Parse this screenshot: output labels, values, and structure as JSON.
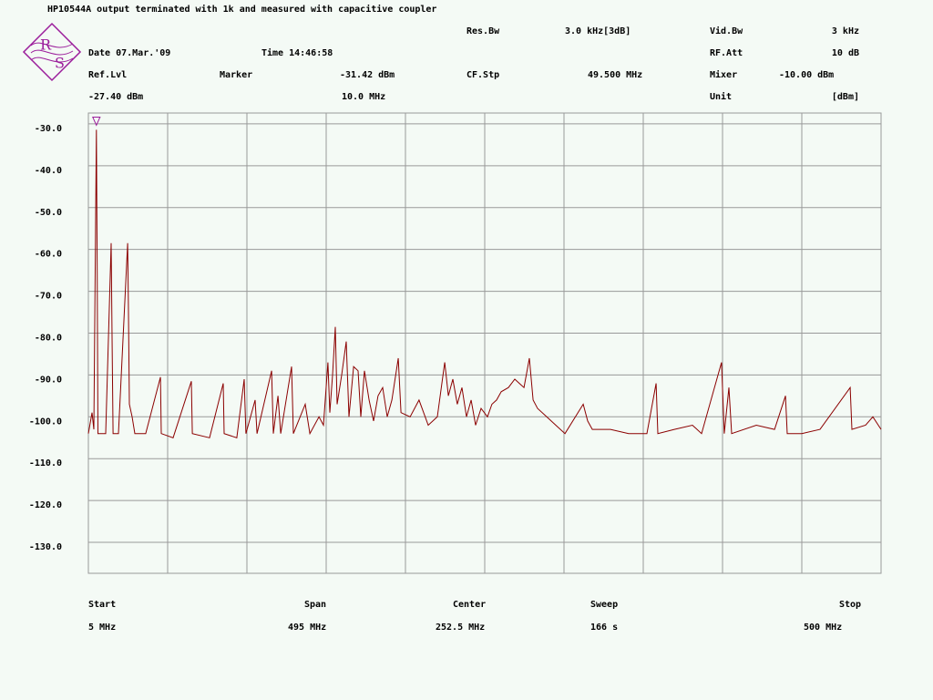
{
  "chart_data": {
    "type": "line",
    "title": "HP10544A output terminated with 1k and measured with capacitive coupler",
    "color": "#8b0000",
    "grid": true,
    "xlim": [
      5,
      500
    ],
    "ylim": [
      -137.4,
      -27.4
    ],
    "yticks": [
      {
        "value": -30,
        "label": "-30.0"
      },
      {
        "value": -40,
        "label": "-40.0"
      },
      {
        "value": -50,
        "label": "-50.0"
      },
      {
        "value": -60,
        "label": "-60.0"
      },
      {
        "value": -70,
        "label": "-70.0"
      },
      {
        "value": -80,
        "label": "-80.0"
      },
      {
        "value": -90,
        "label": "-90.0"
      },
      {
        "value": -100,
        "label": "-100.0"
      },
      {
        "value": -110,
        "label": "-110.0"
      },
      {
        "value": -120,
        "label": "-120.0"
      },
      {
        "value": -130,
        "label": "-130.0"
      }
    ],
    "x": [
      5,
      7.3,
      8.4,
      10,
      10.5,
      11,
      12.4,
      15.8,
      19.2,
      19.8,
      20.4,
      23.8,
      29.5,
      30,
      30.6,
      32.3,
      34,
      40.8,
      50,
      50.5,
      57.9,
      69.3,
      69.9,
      80.7,
      89.2,
      89.8,
      97.7,
      102.3,
      103.4,
      109.1,
      110.3,
      119.4,
      120.5,
      123.4,
      125.1,
      131.9,
      133,
      140.4,
      143.3,
      149,
      151.8,
      154.6,
      155.8,
      157.5,
      159.2,
      160.3,
      163.2,
      166,
      167.7,
      170.6,
      173.4,
      175.1,
      177.4,
      180.3,
      183.1,
      185.9,
      188.8,
      191.6,
      194.5,
      198.5,
      200.2,
      205.9,
      211.5,
      217.2,
      222.9,
      227.5,
      229.8,
      232.6,
      235.4,
      238.3,
      241.1,
      244,
      246.8,
      250.2,
      254.2,
      257,
      259.9,
      262.8,
      267.3,
      271.3,
      274.1,
      277,
      280.4,
      282.7,
      285.5,
      291.2,
      296.9,
      302.6,
      314,
      316.8,
      319.7,
      331,
      342.4,
      353.8,
      359.5,
      360.6,
      370.9,
      382.2,
      387.9,
      400.4,
      402.1,
      405,
      406.7,
      422.1,
      433.5,
      440.3,
      441.4,
      450.5,
      461.9,
      480.7,
      481.8,
      490.3,
      494.9,
      500
    ],
    "values": [
      -104,
      -99,
      -103,
      -31.4,
      -66,
      -104,
      -104,
      -104,
      -58.5,
      -81,
      -104,
      -104,
      -58.5,
      -73,
      -97,
      -100,
      -104,
      -104,
      -90.5,
      -104,
      -105,
      -91.5,
      -104,
      -105,
      -92,
      -104,
      -105,
      -91,
      -104,
      -96,
      -104,
      -89,
      -104,
      -95,
      -104,
      -88,
      -104,
      -97,
      -104,
      -100,
      -102,
      -87,
      -99,
      -90,
      -78.5,
      -97,
      -90,
      -82,
      -100,
      -88,
      -89,
      -100,
      -89,
      -96,
      -101,
      -95,
      -93,
      -100,
      -96,
      -86,
      -99,
      -100,
      -96,
      -102,
      -100,
      -87,
      -95,
      -91,
      -97,
      -93,
      -100,
      -96,
      -102,
      -98,
      -100,
      -97,
      -96,
      -94,
      -93,
      -91,
      -92,
      -93,
      -86,
      -96,
      -98,
      -100,
      -102,
      -104,
      -97,
      -101,
      -103,
      -103,
      -104,
      -104,
      -92,
      -104,
      -103,
      -102,
      -104,
      -87,
      -104,
      -93,
      -104,
      -102,
      -103,
      -95,
      -104,
      -104,
      -103,
      -93,
      -103,
      -102,
      -100,
      -103
    ],
    "marker": {
      "label": "Marker",
      "x": 10,
      "y": -31.42,
      "y_label": "-31.42 dBm",
      "x_label": "10.0 MHz"
    }
  },
  "logo": {
    "letters": [
      "R",
      "S"
    ]
  },
  "header": {
    "res_bw": {
      "label": "Res.Bw",
      "value": "3.0 kHz[3dB]"
    },
    "vid_bw": {
      "label": "Vid.Bw",
      "value": "3 kHz"
    },
    "date": "Date 07.Mar.'09",
    "time": "Time 14:46:58",
    "rf_att": {
      "label": "RF.Att",
      "value": "10 dB"
    },
    "ref_lvl": {
      "label": "Ref.Lvl",
      "value": "-27.40 dBm"
    },
    "cf_stp": {
      "label": "CF.Stp",
      "value": "49.500 MHz"
    },
    "mixer": {
      "label": "Mixer",
      "value": "-10.00 dBm"
    },
    "unit": {
      "label": "Unit",
      "value": "[dBm]"
    }
  },
  "footer": {
    "start": {
      "label": "Start",
      "value": "5 MHz"
    },
    "span": {
      "label": "Span",
      "value": "495 MHz"
    },
    "center": {
      "label": "Center",
      "value": "252.5 MHz"
    },
    "sweep": {
      "label": "Sweep",
      "value": "166 s"
    },
    "stop": {
      "label": "Stop",
      "value": "500 MHz"
    }
  }
}
